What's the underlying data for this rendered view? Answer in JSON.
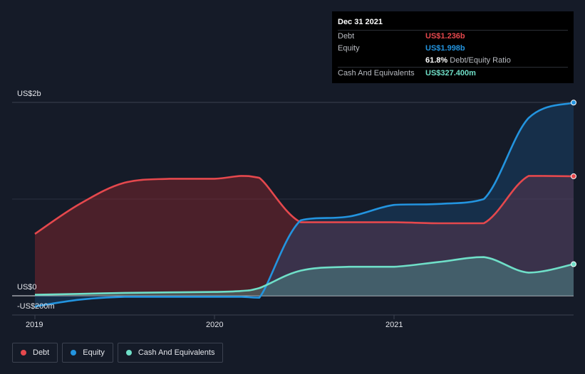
{
  "tooltip": {
    "date": "Dec 31 2021",
    "rows": [
      {
        "label": "Debt",
        "value": "US$1.236b"
      },
      {
        "label": "Equity",
        "value": "US$1.998b"
      },
      {
        "label": "",
        "value": "61.8%",
        "extra": "Debt/Equity Ratio"
      },
      {
        "label": "Cash And Equivalents",
        "value": "US$327.400m"
      }
    ]
  },
  "colors": {
    "debt": "#e5484d",
    "equity": "#2394df",
    "cash": "#6fdfc8",
    "background": "#151b28"
  },
  "legend": [
    {
      "label": "Debt",
      "color": "#e5484d"
    },
    {
      "label": "Equity",
      "color": "#2394df"
    },
    {
      "label": "Cash And Equivalents",
      "color": "#6fdfc8"
    }
  ],
  "chart_data": {
    "type": "area",
    "title": "",
    "xlabel": "",
    "ylabel": "",
    "ylim": [
      -0.2,
      2.0
    ],
    "y_tick_labels": [
      {
        "value": 2.0,
        "label": "US$2b"
      },
      {
        "value": 0.0,
        "label": "US$0"
      },
      {
        "value": -0.2,
        "label": "-US$200m"
      }
    ],
    "x_ticks": [
      {
        "value": 2019.0,
        "label": "2019"
      },
      {
        "value": 2020.0,
        "label": "2020"
      },
      {
        "value": 2021.0,
        "label": "2021"
      }
    ],
    "xlim": [
      2019.0,
      2022.0
    ],
    "series": [
      {
        "name": "Debt",
        "x": [
          2019.0,
          2019.25,
          2019.5,
          2019.75,
          2020.0,
          2020.15,
          2020.25,
          2020.48,
          2020.75,
          2021.0,
          2021.25,
          2021.5,
          2021.75,
          2022.0
        ],
        "values": [
          0.64,
          0.95,
          1.17,
          1.21,
          1.21,
          1.24,
          1.22,
          0.76,
          0.76,
          0.76,
          0.75,
          0.75,
          1.24,
          1.236
        ]
      },
      {
        "name": "Equity",
        "x": [
          2019.0,
          2019.25,
          2019.5,
          2019.75,
          2020.0,
          2020.15,
          2020.25,
          2020.48,
          2020.75,
          2021.0,
          2021.25,
          2021.5,
          2021.75,
          2022.0
        ],
        "values": [
          -0.11,
          -0.04,
          -0.01,
          -0.01,
          -0.01,
          -0.01,
          -0.02,
          0.78,
          0.82,
          0.94,
          0.95,
          1.0,
          1.84,
          1.998
        ]
      },
      {
        "name": "Cash And Equivalents",
        "x": [
          2019.0,
          2019.25,
          2019.5,
          2019.75,
          2020.0,
          2020.15,
          2020.25,
          2020.48,
          2020.75,
          2021.0,
          2021.25,
          2021.5,
          2021.75,
          2022.0
        ],
        "values": [
          0.01,
          0.02,
          0.03,
          0.035,
          0.04,
          0.05,
          0.08,
          0.26,
          0.3,
          0.3,
          0.35,
          0.4,
          0.24,
          0.327
        ]
      }
    ]
  }
}
